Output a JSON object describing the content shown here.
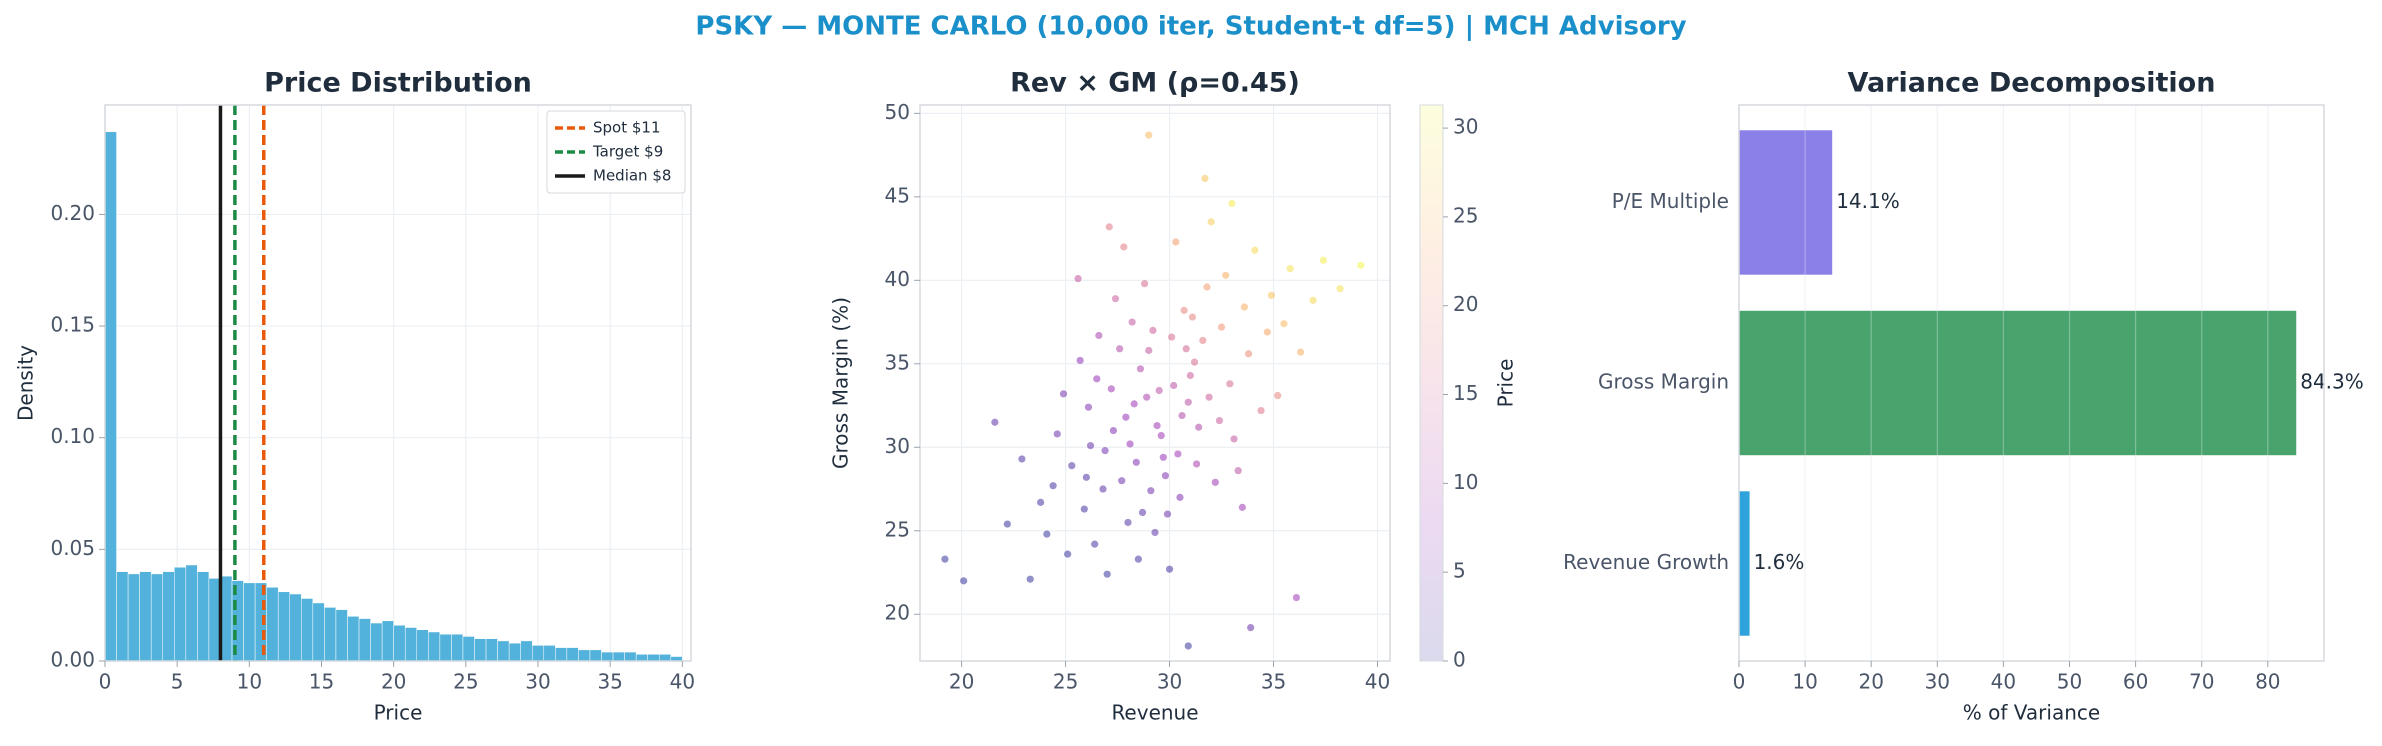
{
  "title": "PSKY — MONTE CARLO (10,000 iter, Student-t df=5) | MCH Advisory",
  "chart_data": [
    {
      "type": "histogram",
      "title": "Price Distribution",
      "xlabel": "Price",
      "ylabel": "Density",
      "color": "#4aaed9",
      "grid": true,
      "legend": "upper right",
      "bins": [
        0,
        0.8,
        1.6,
        2.4,
        3.2,
        4,
        4.8,
        5.6,
        6.4,
        7.2,
        8,
        8.8,
        9.6,
        10.4,
        11.2,
        12,
        12.8,
        13.6,
        14.4,
        15.2,
        16,
        16.8,
        17.6,
        18.4,
        19.2,
        20,
        20.8,
        21.6,
        22.4,
        23.2,
        24,
        24.8,
        25.6,
        26.4,
        27.2,
        28,
        28.8,
        29.6,
        30.4,
        31.2,
        32,
        32.8,
        33.6,
        34.4,
        35.2,
        36,
        36.8,
        37.6,
        38.4,
        39.2,
        40
      ],
      "values": [
        0.237,
        0.04,
        0.039,
        0.04,
        0.039,
        0.04,
        0.042,
        0.043,
        0.04,
        0.037,
        0.038,
        0.036,
        0.035,
        0.035,
        0.033,
        0.031,
        0.03,
        0.028,
        0.026,
        0.024,
        0.023,
        0.02,
        0.019,
        0.017,
        0.018,
        0.016,
        0.015,
        0.014,
        0.013,
        0.012,
        0.012,
        0.011,
        0.01,
        0.01,
        0.009,
        0.008,
        0.009,
        0.007,
        0.007,
        0.006,
        0.006,
        0.005,
        0.005,
        0.004,
        0.004,
        0.004,
        0.003,
        0.003,
        0.003,
        0.002
      ],
      "vlines": [
        {
          "name": "Spot $11",
          "value": 11,
          "color": "#e8590c",
          "dashed": true
        },
        {
          "name": "Target $9",
          "value": 9,
          "color": "#1a8a44",
          "dashed": true
        },
        {
          "name": "Median $8",
          "value": 8,
          "color": "#1a1a1a",
          "dashed": false
        }
      ],
      "xlim": [
        0,
        40.6
      ],
      "xticks": [
        0,
        5,
        10,
        15,
        20,
        25,
        30,
        35,
        40
      ],
      "ylim": [
        0,
        0.249
      ],
      "yticks": [
        {
          "value": 0,
          "label": "0.00"
        },
        {
          "value": 0.05,
          "label": "0.05"
        },
        {
          "value": 0.1,
          "label": "0.10"
        },
        {
          "value": 0.15,
          "label": "0.15"
        },
        {
          "value": 0.2,
          "label": "0.20"
        }
      ]
    },
    {
      "type": "scatter",
      "title": "Rev × GM (ρ=0.45)",
      "xlabel": "Revenue",
      "ylabel": "Gross Margin (%)",
      "grid": true,
      "colormap": "plasma",
      "colorbar": {
        "label": "Price",
        "lim": [
          0,
          31.3
        ],
        "ticks": [
          0,
          5,
          10,
          15,
          20,
          25,
          30
        ]
      },
      "x": [
        28.1,
        29.5,
        31.2,
        26.8,
        27.9,
        30.4,
        32.5,
        25.3,
        29.0,
        33.6,
        28.7,
        30.9,
        27.2,
        31.8,
        24.6,
        29.8,
        34.7,
        26.4,
        30.1,
        28.4,
        32.9,
        23.8,
        31.4,
        27.6,
        35.8,
        29.3,
        26.1,
        30.7,
        33.1,
        28.9,
        22.9,
        36.9,
        27.0,
        31.0,
        25.7,
        29.6,
        34.1,
        28.2,
        32.2,
        26.9,
        30.3,
        24.1,
        33.8,
        29.1,
        27.4,
        31.6,
        35.2,
        25.9,
        30.6,
        28.6,
        37.4,
        26.2,
        32.7,
        29.9,
        21.6,
        33.3,
        27.7,
        31.9,
        28.8,
        24.9,
        35.5,
        30.0,
        26.6,
        29.4,
        32.0,
        23.3,
        34.4,
        28.0,
        30.8,
        27.3,
        36.3,
        25.1,
        31.3,
        29.2,
        33.0,
        26.0,
        30.5,
        28.3,
        38.2,
        24.4,
        32.4,
        27.8,
        30.2,
        22.2,
        34.9,
        29.7,
        26.5,
        31.1,
        33.5,
        28.5,
        20.1,
        36.1,
        30.9,
        19.2,
        39.2,
        27.1,
        33.9,
        25.6,
        29.0,
        31.7
      ],
      "y": [
        30.2,
        33.4,
        35.1,
        27.5,
        31.8,
        29.6,
        37.2,
        28.9,
        35.8,
        38.4,
        26.1,
        32.7,
        33.5,
        39.6,
        30.8,
        28.3,
        36.9,
        24.2,
        36.6,
        29.1,
        33.8,
        26.7,
        31.2,
        35.9,
        40.7,
        24.9,
        32.4,
        38.2,
        30.5,
        33.0,
        29.3,
        38.8,
        22.4,
        34.3,
        35.2,
        30.7,
        41.8,
        37.5,
        27.9,
        29.8,
        42.3,
        24.8,
        35.6,
        27.4,
        38.9,
        36.4,
        33.1,
        26.3,
        31.9,
        34.7,
        41.2,
        30.1,
        40.3,
        26.0,
        31.5,
        28.6,
        28.0,
        33.0,
        39.8,
        33.2,
        37.4,
        22.7,
        36.7,
        31.3,
        43.5,
        22.1,
        32.2,
        25.5,
        35.9,
        31.0,
        35.7,
        23.6,
        29.0,
        37.0,
        44.6,
        28.2,
        27.0,
        32.6,
        39.5,
        27.7,
        31.6,
        42.0,
        33.7,
        25.4,
        39.1,
        29.4,
        34.1,
        37.8,
        26.4,
        23.3,
        22.0,
        21.0,
        18.1,
        23.3,
        40.9,
        43.2,
        19.2,
        40.1,
        48.7,
        46.1
      ],
      "c": [
        8,
        12,
        16,
        3,
        8,
        9,
        21,
        2,
        13,
        24,
        3,
        12,
        9,
        22,
        4,
        6,
        23,
        1,
        16,
        6,
        16,
        1,
        11,
        11,
        29,
        3,
        6,
        19,
        13,
        10,
        2,
        28,
        0,
        14,
        7,
        9,
        28,
        13,
        9,
        5,
        22,
        0,
        20,
        5,
        14,
        18,
        19,
        1,
        11,
        11,
        30,
        4,
        24,
        4,
        3,
        12,
        4,
        14,
        16,
        5,
        25,
        1,
        10,
        9,
        27,
        0,
        17,
        2,
        15,
        6,
        24,
        0,
        10,
        14,
        30,
        2,
        6,
        9,
        29,
        1,
        14,
        18,
        12,
        0,
        26,
        8,
        8,
        19,
        9,
        1,
        0,
        9,
        0,
        0,
        31,
        18,
        4,
        13,
        25,
        26
      ],
      "xlim": [
        18,
        40.6
      ],
      "xticks": [
        20,
        25,
        30,
        35,
        40
      ],
      "ylim": [
        17.2,
        50.5
      ],
      "yticks": [
        20,
        25,
        30,
        35,
        40,
        45,
        50
      ]
    },
    {
      "type": "barh",
      "title": "Variance Decomposition",
      "xlabel": "% of Variance",
      "grid": true,
      "categories": [
        "Revenue Growth",
        "Gross Margin",
        "P/E Multiple"
      ],
      "values": [
        1.6,
        84.3,
        14.1
      ],
      "value_labels": [
        "1.6%",
        "84.3%",
        "14.1%"
      ],
      "colors": [
        "#2ea3db",
        "#48a36c",
        "#8b7fe8"
      ],
      "xlim": [
        0,
        88.5
      ],
      "xticks": [
        0,
        10,
        20,
        30,
        40,
        50,
        60,
        70,
        80
      ]
    }
  ]
}
